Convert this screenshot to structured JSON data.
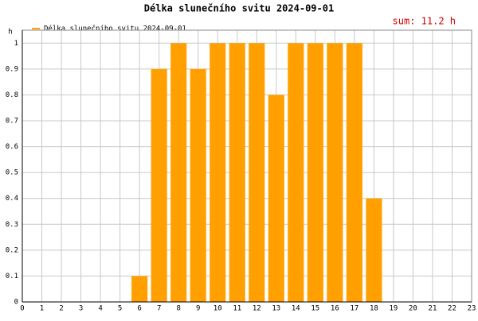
{
  "chart_data": {
    "type": "bar",
    "title": "Délka slunečního svitu 2024-09-01",
    "legend": "Délka slunečního svitu 2024-09-01",
    "annotation": "sum: 11.2 h",
    "ylabel": "h",
    "x": [
      6,
      7,
      8,
      9,
      10,
      11,
      12,
      13,
      14,
      15,
      16,
      17,
      18
    ],
    "values": [
      0.1,
      0.9,
      1,
      0.9,
      1,
      1,
      1,
      0.8,
      1,
      1,
      1,
      1,
      0.4
    ],
    "color": "#ffa000",
    "xlim": [
      0,
      23
    ],
    "xticks": [
      0,
      1,
      2,
      3,
      4,
      5,
      6,
      7,
      8,
      9,
      10,
      11,
      12,
      13,
      14,
      15,
      16,
      17,
      18,
      19,
      20,
      21,
      22,
      23
    ],
    "ylim": [
      0,
      1.05
    ],
    "yticks": [
      0,
      0.1,
      0.2,
      0.3,
      0.4,
      0.5,
      0.6,
      0.7,
      0.8,
      0.9,
      1
    ],
    "grid": true
  }
}
